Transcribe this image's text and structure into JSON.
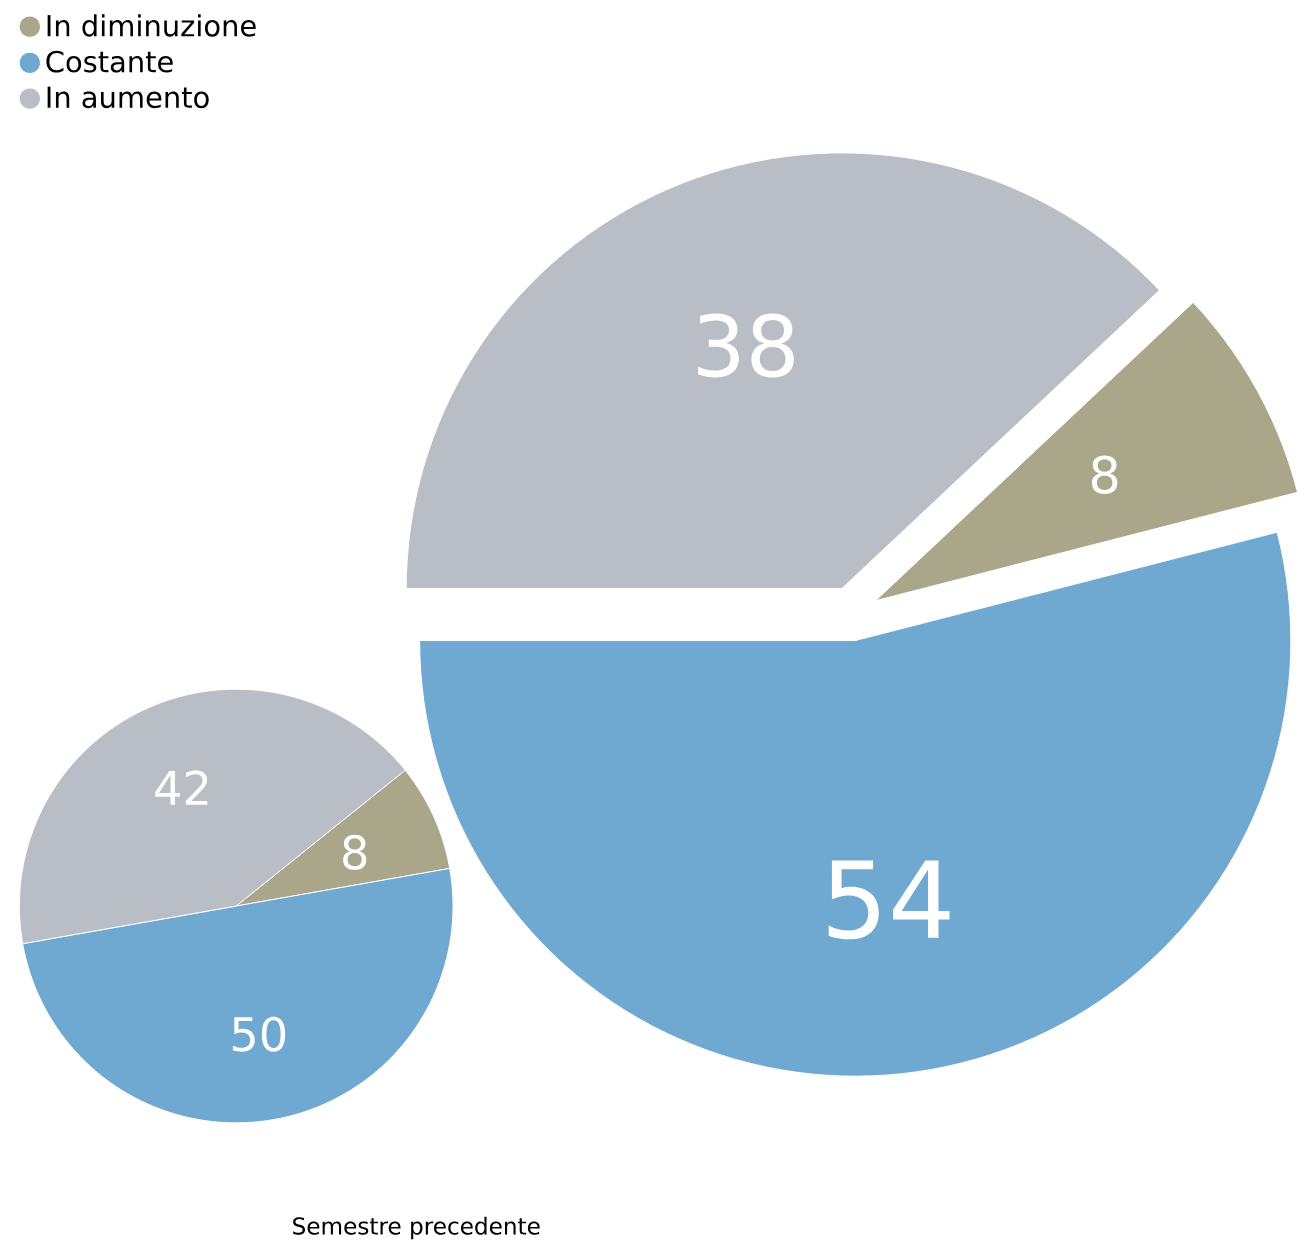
{
  "chart_data": [
    {
      "type": "pie",
      "categories": [
        "In diminuzione",
        "Costante",
        "In aumento"
      ],
      "values": [
        8,
        54,
        38
      ],
      "colors": [
        "#a9a68a",
        "#6fa9d2",
        "#b9bdc5"
      ],
      "data_labels": true,
      "legend": "top left"
    },
    {
      "type": "pie",
      "title": "Semestre precedente",
      "values": [
        8,
        50,
        42
      ],
      "colors": [
        "#a9a68a",
        "#6fa9d2",
        "#b9bdc5"
      ],
      "data_labels": true
    }
  ]
}
